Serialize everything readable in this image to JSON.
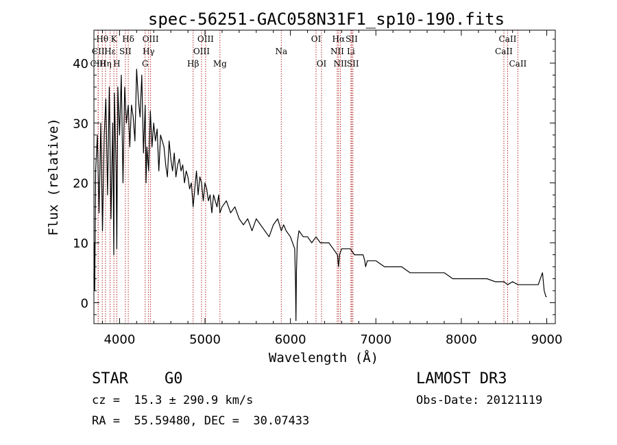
{
  "chart_data": {
    "type": "line",
    "title": "spec-56251-GAC058N31F1_sp10-190.fits",
    "xlabel": "Wavelength (Å)",
    "ylabel": "Flux (relative)",
    "xlim": [
      3700,
      9100
    ],
    "ylim": [
      -3.5,
      45.5
    ],
    "xticks": [
      4000,
      5000,
      6000,
      7000,
      8000,
      9000
    ],
    "yticks": [
      0,
      10,
      20,
      30,
      40
    ],
    "grid": false,
    "series": [
      {
        "name": "flux",
        "x": [
          3700,
          3705,
          3710,
          3720,
          3740,
          3760,
          3780,
          3800,
          3820,
          3840,
          3860,
          3880,
          3900,
          3920,
          3933,
          3940,
          3960,
          3968,
          3980,
          4000,
          4020,
          4040,
          4060,
          4080,
          4102,
          4120,
          4140,
          4160,
          4180,
          4200,
          4220,
          4240,
          4260,
          4280,
          4300,
          4310,
          4320,
          4340,
          4360,
          4380,
          4400,
          4420,
          4440,
          4460,
          4480,
          4500,
          4520,
          4540,
          4560,
          4580,
          4600,
          4620,
          4640,
          4660,
          4680,
          4700,
          4720,
          4740,
          4760,
          4780,
          4800,
          4820,
          4840,
          4861,
          4880,
          4900,
          4920,
          4940,
          4960,
          4980,
          5000,
          5020,
          5040,
          5060,
          5080,
          5100,
          5120,
          5140,
          5160,
          5175,
          5200,
          5250,
          5300,
          5350,
          5400,
          5450,
          5500,
          5550,
          5600,
          5650,
          5700,
          5750,
          5800,
          5850,
          5893,
          5920,
          5950,
          6000,
          6050,
          6060,
          6065,
          6070,
          6080,
          6100,
          6150,
          6200,
          6250,
          6300,
          6350,
          6400,
          6450,
          6500,
          6550,
          6563,
          6575,
          6600,
          6650,
          6700,
          6750,
          6800,
          6850,
          6870,
          6880,
          6900,
          6950,
          7000,
          7100,
          7200,
          7300,
          7400,
          7500,
          7600,
          7700,
          7800,
          7900,
          8000,
          8100,
          8200,
          8300,
          8400,
          8500,
          8542,
          8600,
          8662,
          8700,
          8800,
          8900,
          8950,
          8970,
          8990,
          9000
        ],
        "y": [
          4,
          10,
          2,
          22,
          28,
          15,
          30,
          12,
          28,
          34,
          18,
          36,
          14,
          30,
          8,
          35,
          22,
          9,
          36,
          28,
          38,
          20,
          36,
          30,
          33,
          26,
          33,
          31,
          27,
          39,
          34,
          31,
          38,
          25,
          33,
          20,
          26,
          22,
          32,
          26,
          30,
          27,
          29,
          22,
          28,
          27,
          26,
          23,
          21,
          27,
          24,
          22,
          25,
          21,
          23,
          24,
          22,
          23,
          20,
          22,
          21,
          19,
          20,
          16,
          19,
          22,
          18,
          21,
          20,
          17,
          20,
          19,
          17,
          18,
          15,
          18,
          17,
          16,
          18,
          15,
          16,
          17,
          15,
          16,
          14,
          13,
          14,
          12,
          14,
          13,
          12,
          11,
          13,
          14,
          12,
          13,
          12,
          11,
          9,
          3,
          -3,
          5,
          10,
          12,
          11,
          11,
          10,
          11,
          10,
          10,
          10,
          9,
          8,
          6,
          8,
          9,
          9,
          9,
          8,
          8,
          8,
          7,
          6,
          7,
          7,
          7,
          6,
          6,
          6,
          5,
          5,
          5,
          5,
          5,
          4,
          4,
          4,
          4,
          4,
          3.5,
          3.5,
          3,
          3.5,
          3,
          3,
          3,
          3,
          5,
          2,
          1,
          1
        ]
      }
    ],
    "lines": [
      {
        "label": "Hθ",
        "x": 3798,
        "row": 1
      },
      {
        "label": "CII",
        "x": 3750,
        "row": 2
      },
      {
        "label": "CIII",
        "x": 3750,
        "row": 3
      },
      {
        "label": "K",
        "x": 3934,
        "row": 1
      },
      {
        "label": "Hε",
        "x": 3889,
        "row": 2
      },
      {
        "label": "Hη",
        "x": 3835,
        "row": 3
      },
      {
        "label": "H",
        "x": 3968,
        "row": 3
      },
      {
        "label": "SII",
        "x": 4068,
        "row": 2
      },
      {
        "label": "Hδ",
        "x": 4102,
        "row": 1
      },
      {
        "label": "OIII",
        "x": 4363,
        "row": 1
      },
      {
        "label": "Hγ",
        "x": 4340,
        "row": 2
      },
      {
        "label": "G",
        "x": 4300,
        "row": 3
      },
      {
        "label": "Hβ",
        "x": 4861,
        "row": 3
      },
      {
        "label": "OIII",
        "x": 5007,
        "row": 1
      },
      {
        "label": "OIII",
        "x": 4959,
        "row": 2
      },
      {
        "label": "Mg",
        "x": 5175,
        "row": 3
      },
      {
        "label": "Na",
        "x": 5893,
        "row": 2
      },
      {
        "label": "OI",
        "x": 6300,
        "row": 1
      },
      {
        "label": "OI",
        "x": 6364,
        "row": 3
      },
      {
        "label": "Hα",
        "x": 6563,
        "row": 1
      },
      {
        "label": "NII",
        "x": 6548,
        "row": 2
      },
      {
        "label": "NII",
        "x": 6584,
        "row": 3
      },
      {
        "label": "SII",
        "x": 6717,
        "row": 1
      },
      {
        "label": "Li",
        "x": 6708,
        "row": 2
      },
      {
        "label": "SII",
        "x": 6731,
        "row": 3
      },
      {
        "label": "CaII",
        "x": 8542,
        "row": 1
      },
      {
        "label": "CaII",
        "x": 8498,
        "row": 2
      },
      {
        "label": "CaII",
        "x": 8662,
        "row": 3
      }
    ],
    "colors": {
      "spectrum": "#000000",
      "lines": "#b22222",
      "axes": "#000000"
    }
  },
  "info": {
    "class": "STAR",
    "subclass": "G0",
    "survey": "LAMOST DR3",
    "redshift": "cz =  15.3 ± 290.9 km/s",
    "obsdate": "Obs-Date: 20121119",
    "coords": "RA =  55.59480, DEC =  30.07433"
  }
}
